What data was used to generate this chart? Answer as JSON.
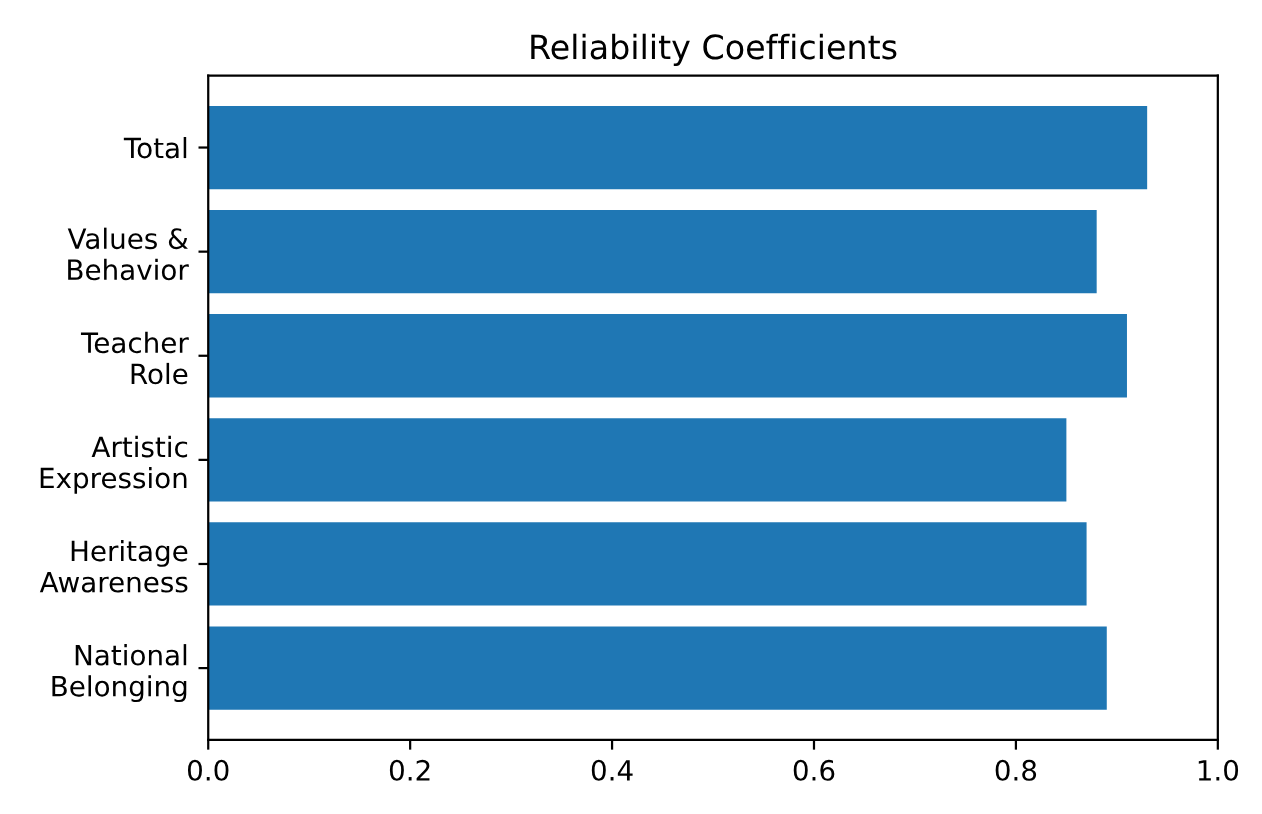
{
  "chart_data": {
    "type": "bar",
    "orientation": "horizontal",
    "title": "Reliability Coefficients",
    "categories": [
      "Total",
      "Values &\nBehavior",
      "Teacher\nRole",
      "Artistic\nExpression",
      "Heritage\nAwareness",
      "National\nBelonging"
    ],
    "values": [
      0.93,
      0.88,
      0.91,
      0.85,
      0.87,
      0.89
    ],
    "color": "#1f77b4",
    "xlim": [
      0,
      1
    ],
    "xticks": [
      {
        "value": 0,
        "label": "0.0"
      },
      0.2,
      0.4,
      0.6,
      0.8,
      {
        "value": 1,
        "label": "1.0"
      }
    ],
    "grid": false,
    "legend": false
  }
}
